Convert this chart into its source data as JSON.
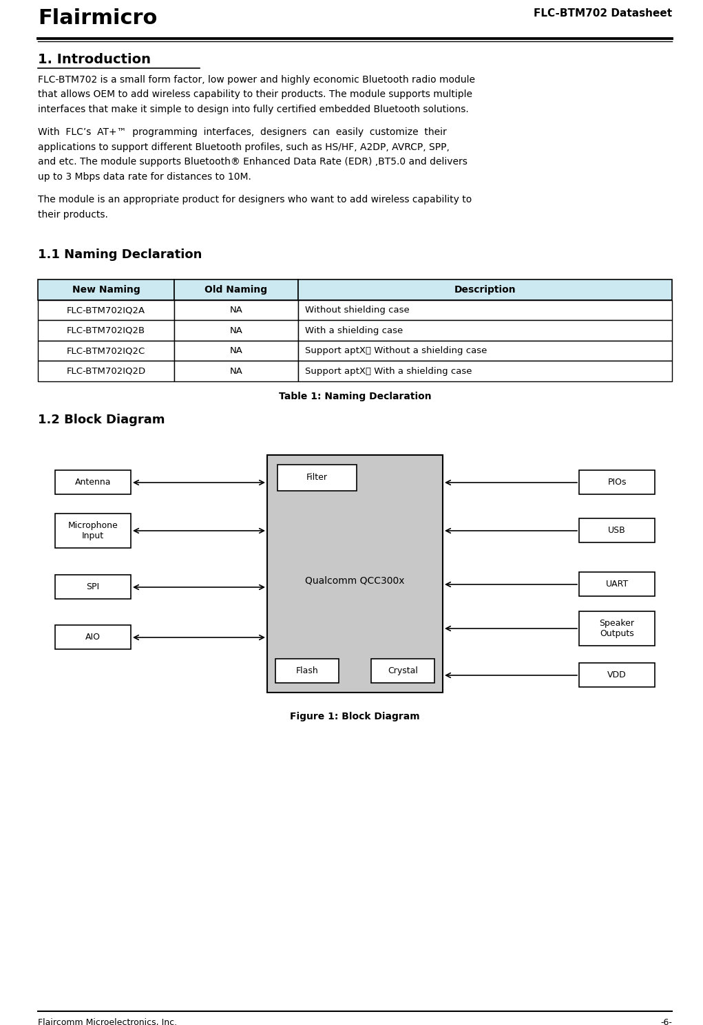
{
  "page_width": 10.21,
  "page_height": 14.89,
  "bg_color": "#ffffff",
  "logo_text": "Flairmicro",
  "header_right": "FLC-BTM702 Datasheet",
  "footer_left": "Flaircomm Microelectronics, Inc.",
  "footer_right": "-6-",
  "section1_title": "1. Introduction",
  "section1_para1_lines": [
    "FLC-BTM702 is a small form factor, low power and highly economic Bluetooth radio module",
    "that allows OEM to add wireless capability to their products. The module supports multiple",
    "interfaces that make it simple to design into fully certified embedded Bluetooth solutions."
  ],
  "section1_para2_lines": [
    "With  FLC’s  AT+™  programming  interfaces,  designers  can  easily  customize  their",
    "applications to support different Bluetooth profiles, such as HS/HF, A2DP, AVRCP, SPP,",
    "and etc. The module supports Bluetooth® Enhanced Data Rate (EDR) ,BT5.0 and delivers",
    "up to 3 Mbps data rate for distances to 10M."
  ],
  "section1_para3_lines": [
    "The module is an appropriate product for designers who want to add wireless capability to",
    "their products."
  ],
  "section11_title": "1.1 Naming Declaration",
  "table_header": [
    "New Naming",
    "Old Naming",
    "Description"
  ],
  "table_rows": [
    [
      "FLC-BTM702IQ2A",
      "NA",
      "Without shielding case"
    ],
    [
      "FLC-BTM702IQ2B",
      "NA",
      "With a shielding case"
    ],
    [
      "FLC-BTM702IQ2C",
      "NA",
      "Support aptX； Without a shielding case"
    ],
    [
      "FLC-BTM702IQ2D",
      "NA",
      "Support aptX； With a shielding case"
    ]
  ],
  "table_caption": "Table 1: Naming Declaration",
  "table_header_bg": "#cce8f0",
  "table_border_color": "#000000",
  "section12_title": "1.2 Block Diagram",
  "diagram_caption": "Figure 1: Block Diagram",
  "left_boxes": [
    "Antenna",
    "Microphone\nInput",
    "SPI",
    "AIO"
  ],
  "right_boxes": [
    "PIOs",
    "USB",
    "UART",
    "Speaker\nOutputs",
    "VDD"
  ],
  "center_label": "Qualcomm QCC300x",
  "center_fill": "#c8c8c8",
  "box_fill": "#ffffff",
  "box_border": "#000000"
}
